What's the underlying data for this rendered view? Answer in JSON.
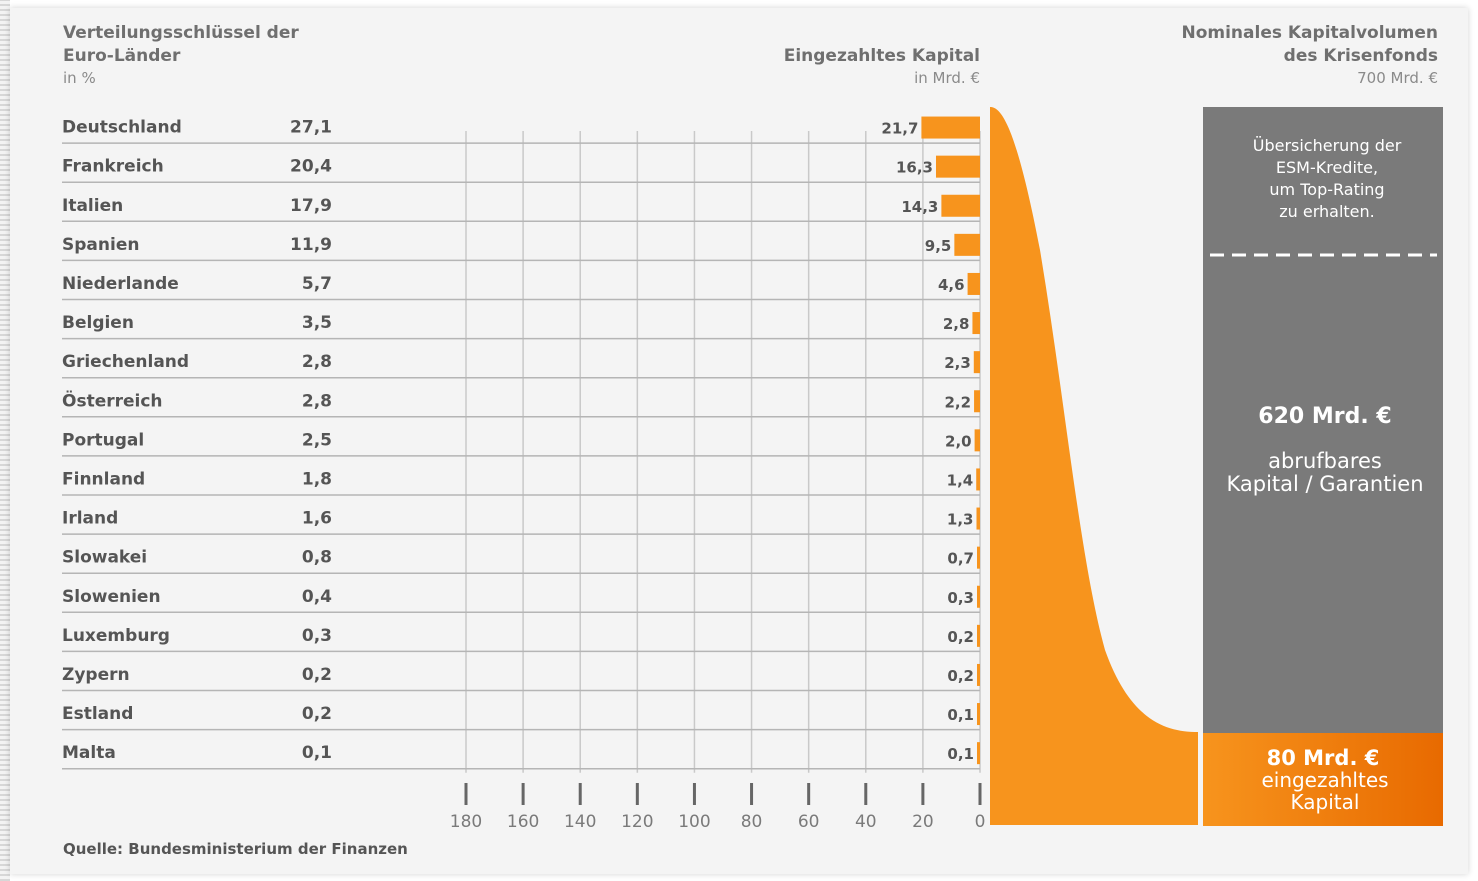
{
  "header": {
    "left_title_1": "Verteilungsschlüssel der",
    "left_title_2": "Euro-Länder",
    "left_unit": "in %",
    "mid_title": "Eingezahltes Kapital",
    "mid_unit": "in Mrd. €",
    "right_title_1": "Nominales Kapitalvolumen",
    "right_title_2": "des Krisenfonds",
    "right_unit": "700 Mrd. €"
  },
  "source": "Quelle: Bundesministerium der Finanzen",
  "fund_box": {
    "top_text": [
      "Übersicherung der",
      "ESM-Kredite,",
      "um Top-Rating",
      "zu erhalten."
    ],
    "guarantee_amount": "620 Mrd. €",
    "guarantee_text": [
      "abrufbares",
      "Kapital / Garantien"
    ],
    "paid_amount": "80 Mrd. €",
    "paid_text": [
      "eingezahltes",
      "Kapital"
    ],
    "colors": {
      "guarantee": "#7a7a7a",
      "paid": "#f07d00",
      "accent": "#f7941d"
    }
  },
  "chart_data": {
    "type": "bar",
    "orientation": "horizontal",
    "categories": [
      "Deutschland",
      "Frankreich",
      "Italien",
      "Spanien",
      "Niederlande",
      "Belgien",
      "Griechenland",
      "Österreich",
      "Portugal",
      "Finnland",
      "Irland",
      "Slowakei",
      "Slowenien",
      "Luxemburg",
      "Zypern",
      "Estland",
      "Malta"
    ],
    "share_percent_labels": [
      "27,1",
      "20,4",
      "17,9",
      "11,9",
      "5,7",
      "3,5",
      "2,8",
      "2,8",
      "2,5",
      "1,8",
      "1,6",
      "0,8",
      "0,4",
      "0,3",
      "0,2",
      "0,2",
      "0,1"
    ],
    "series": [
      {
        "values": [
          21.7,
          16.3,
          14.3,
          9.5,
          4.6,
          2.8,
          2.3,
          2.2,
          2.0,
          1.4,
          1.3,
          0.7,
          0.3,
          0.2,
          0.2,
          0.1,
          0.1
        ],
        "labels": [
          "21,7",
          "16,3",
          "14,3",
          "9,5",
          "4,6",
          "2,8",
          "2,3",
          "2,2",
          "2,0",
          "1,4",
          "1,3",
          "0,7",
          "0,3",
          "0,2",
          "0,2",
          "0,1",
          "0,1"
        ]
      }
    ],
    "xlim": [
      0,
      180
    ],
    "x_reversed": true,
    "x_ticks": [
      180,
      160,
      140,
      120,
      100,
      80,
      60,
      40,
      20,
      0
    ],
    "grid": true,
    "bar_color": "#f7941d"
  }
}
